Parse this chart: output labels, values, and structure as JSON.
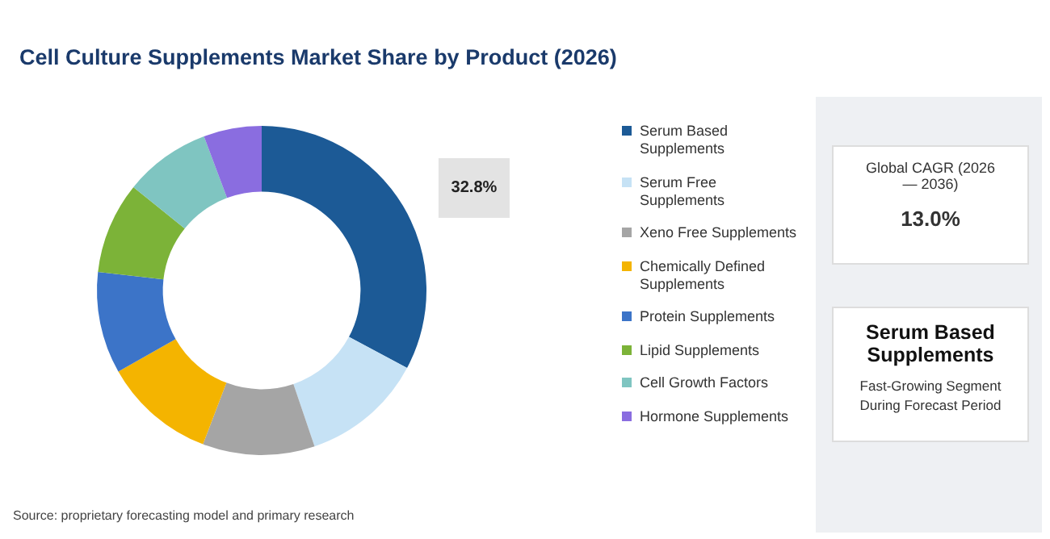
{
  "chart_data": {
    "type": "donut",
    "title": "Cell Culture Supplements Market Share by Product (2026)",
    "categories": [
      "Serum Based Supplements",
      "Serum Free Supplements",
      "Xeno Free Supplements",
      "Chemically Defined Supplements",
      "Protein Supplements",
      "Lipid Supplements",
      "Cell Growth Factors",
      "Hormone Supplements"
    ],
    "values": [
      32.8,
      12,
      11,
      11,
      10,
      9,
      8.5,
      5.7
    ],
    "value_labels": [
      "32.8%",
      null,
      null,
      null,
      null,
      null,
      null,
      null
    ],
    "colors": [
      "#1c5a96",
      "#c6e2f5",
      "#a5a5a5",
      "#f4b400",
      "#3c74c8",
      "#7cb338",
      "#7fc5c1",
      "#8a6de0"
    ],
    "legend": "right",
    "annotations": [
      "Source: proprietary forecasting model and primary research",
      "Global CAGR (2026 — 2036)",
      "13.0%",
      "Serum Based Supplements",
      "Fast-Growing Segment During Forecast Period"
    ]
  }
}
